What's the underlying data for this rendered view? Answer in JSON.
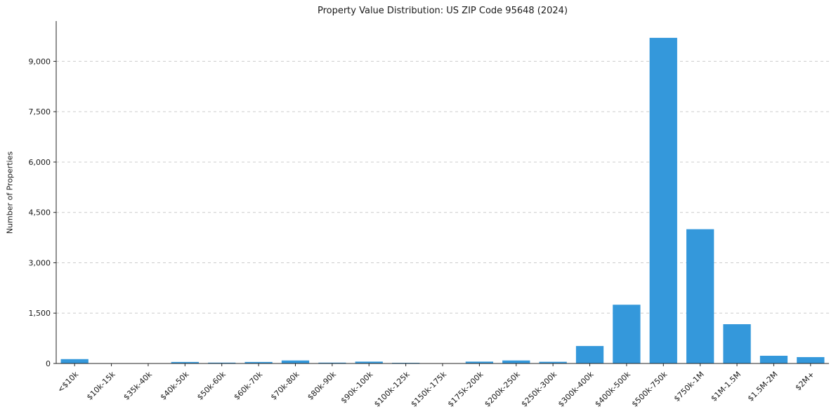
{
  "chart_data": {
    "type": "bar",
    "title": "Property Value Distribution: US ZIP Code 95648 (2024)",
    "xlabel": "",
    "ylabel": "Number of Properties",
    "categories": [
      "<$10k",
      "$10k-15k",
      "$35k-40k",
      "$40k-50k",
      "$50k-60k",
      "$60k-70k",
      "$70k-80k",
      "$80k-90k",
      "$90k-100k",
      "$100k-125k",
      "$150k-175k",
      "$175k-200k",
      "$200k-250k",
      "$250k-300k",
      "$300k-400k",
      "$400k-500k",
      "$500k-750k",
      "$750k-1M",
      "$1M-1.5M",
      "$1.5M-2M",
      "$2M+"
    ],
    "values": [
      130,
      10,
      10,
      45,
      25,
      45,
      90,
      25,
      55,
      20,
      10,
      55,
      90,
      50,
      520,
      1750,
      9700,
      4000,
      1170,
      230,
      190
    ],
    "ylim": [
      0,
      10200
    ],
    "yticks": [
      {
        "value": 0,
        "label": "0"
      },
      {
        "value": 1500,
        "label": "1,500"
      },
      {
        "value": 3000,
        "label": "3,000"
      },
      {
        "value": 4500,
        "label": "4,500"
      },
      {
        "value": 6000,
        "label": "6,000"
      },
      {
        "value": 7500,
        "label": "7,500"
      },
      {
        "value": 9000,
        "label": "9,000"
      }
    ],
    "bar_color": "#3498db",
    "grid": true,
    "grid_color": "#cccccc",
    "legend": "none"
  }
}
